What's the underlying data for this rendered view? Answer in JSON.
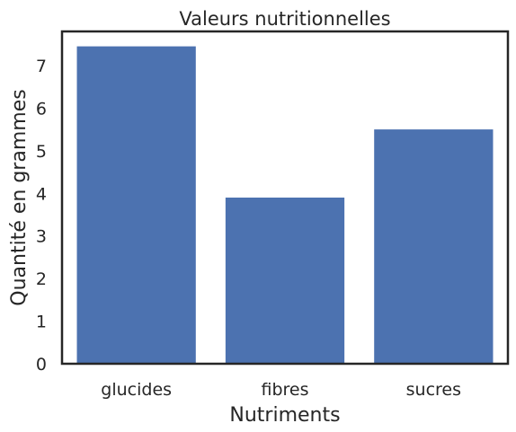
{
  "chart_data": {
    "type": "bar",
    "title": "Valeurs nutritionnelles",
    "xlabel": "Nutriments",
    "ylabel": "Quantité en grammes",
    "categories": [
      "glucides",
      "fibres",
      "sucres"
    ],
    "values": [
      7.45,
      3.9,
      5.5
    ],
    "ylim": [
      0,
      7.8
    ],
    "yticks": [
      0,
      1,
      2,
      3,
      4,
      5,
      6,
      7
    ],
    "bar_color": "#4c72b0",
    "grid": false,
    "legend": "none"
  }
}
